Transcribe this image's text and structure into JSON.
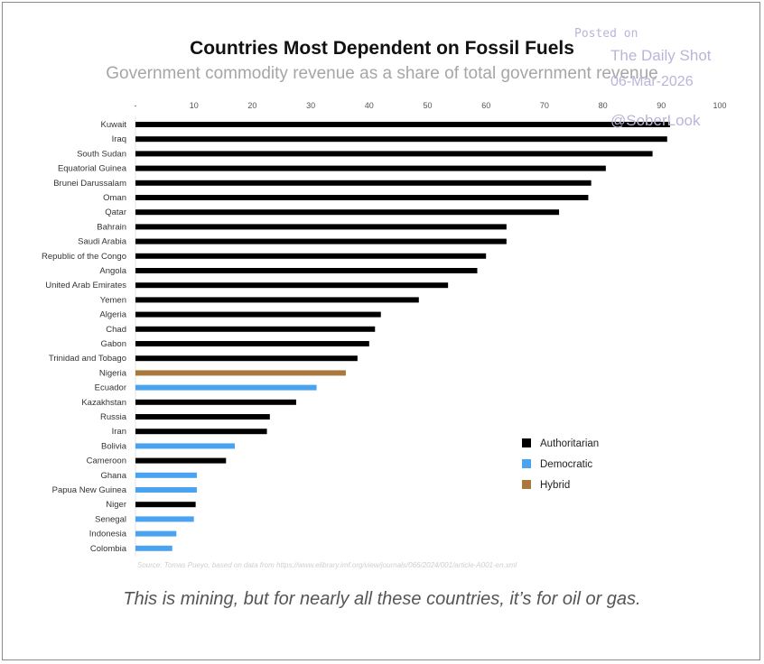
{
  "watermark": {
    "posted": "Posted on",
    "site": "The Daily Shot",
    "date": "06-Mar-2026",
    "handle": "@SoberLook"
  },
  "caption": "This is mining, but for nearly all these countries, it’s for oil or gas.",
  "chart_data": {
    "type": "bar",
    "orientation": "horizontal",
    "title": "Countries Most Dependent on Fossil Fuels",
    "subtitle": "Government commodity revenue as a share of total government revenue",
    "source": "Source: Tomas Pueyo, based on data from https://www.elibrary.imf.org/view/journals/066/2024/001/article-A001-en.xml",
    "xlim": [
      0,
      100
    ],
    "x_ticks": [
      0,
      10,
      20,
      30,
      40,
      50,
      60,
      70,
      80,
      90,
      100
    ],
    "x_tick_labels": [
      "-",
      "10",
      "20",
      "30",
      "40",
      "50",
      "60",
      "70",
      "80",
      "90",
      "100"
    ],
    "x_axis_position": "top",
    "grid": false,
    "legend_position": "right",
    "legend": [
      {
        "label": "Authoritarian",
        "color": "#000000"
      },
      {
        "label": "Democratic",
        "color": "#4aa3f0"
      },
      {
        "label": "Hybrid",
        "color": "#a9783c"
      }
    ],
    "categories": [
      "Kuwait",
      "Iraq",
      "South Sudan",
      "Equatorial Guinea",
      "Brunei Darussalam",
      "Oman",
      "Qatar",
      "Bahrain",
      "Saudi Arabia",
      "Republic of the Congo",
      "Angola",
      "United Arab Emirates",
      "Yemen",
      "Algeria",
      "Chad",
      "Gabon",
      "Trinidad and Tobago",
      "Nigeria",
      "Ecuador",
      "Kazakhstan",
      "Russia",
      "Iran",
      "Bolivia",
      "Cameroon",
      "Ghana",
      "Papua New Guinea",
      "Niger",
      "Senegal",
      "Indonesia",
      "Colombia"
    ],
    "values": [
      91.5,
      91,
      88.5,
      80.5,
      78,
      77.5,
      72.5,
      63.5,
      63.5,
      60,
      58.5,
      53.5,
      48.5,
      42,
      41,
      40,
      38,
      36,
      31,
      27.5,
      23,
      22.5,
      17,
      15.5,
      10.5,
      10.5,
      10.3,
      10,
      7,
      6.3
    ],
    "regime": [
      "Authoritarian",
      "Authoritarian",
      "Authoritarian",
      "Authoritarian",
      "Authoritarian",
      "Authoritarian",
      "Authoritarian",
      "Authoritarian",
      "Authoritarian",
      "Authoritarian",
      "Authoritarian",
      "Authoritarian",
      "Authoritarian",
      "Authoritarian",
      "Authoritarian",
      "Authoritarian",
      "Authoritarian",
      "Hybrid",
      "Democratic",
      "Authoritarian",
      "Authoritarian",
      "Authoritarian",
      "Democratic",
      "Authoritarian",
      "Democratic",
      "Democratic",
      "Authoritarian",
      "Democratic",
      "Democratic",
      "Democratic"
    ]
  }
}
